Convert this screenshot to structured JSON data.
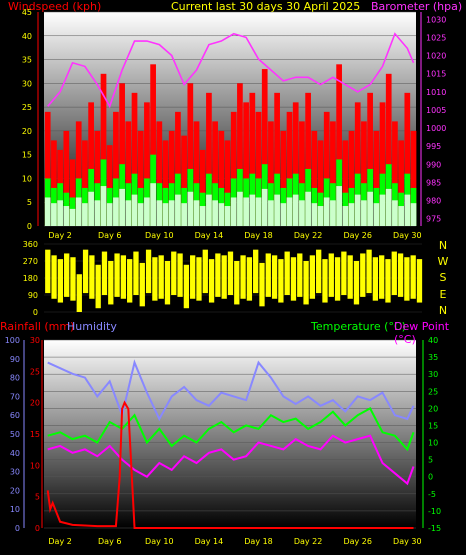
{
  "header": {
    "windspeed_label": "Windspeed (kph)",
    "title": "Current last 30 days 30 April 2025",
    "barometer_label": "Barometer (hpa)"
  },
  "bottom_header": {
    "rainfall_label": "Rainfall (mm)",
    "humidity_label": "Humidity",
    "temperature_label": "Temperature (°C)",
    "dewpoint_label": "Dew Point (°C)"
  },
  "compass_letters": [
    "N",
    "W",
    "S",
    "E",
    "N"
  ],
  "colors": {
    "gust": "#ff0000",
    "avg_wind": "#00ff00",
    "wind_fill": "#ccffcc",
    "barometer": "#ff33ff",
    "direction": "#ffff00",
    "rainfall": "#ff0000",
    "humidity": "#8888ff",
    "temperature": "#00ff00",
    "dewpoint": "#ff00ff",
    "title": "#ffff00",
    "tick_text": "#ffff00"
  },
  "chart_data": [
    {
      "type": "area",
      "name": "wind_barometer",
      "x_ticks": [
        "Day 2",
        "Day 6",
        "Day 10",
        "Day 14",
        "Day 18",
        "Day 22",
        "Day 26",
        "Day 30"
      ],
      "x_range": [
        0.7,
        30.7
      ],
      "y_left_label": "Windspeed (kph)",
      "y_left_ticks": [
        0,
        5,
        10,
        15,
        20,
        25,
        30,
        35,
        40,
        45
      ],
      "y_left_range": [
        0,
        45
      ],
      "y_right_label": "Barometer (hpa)",
      "y_right_ticks": [
        975,
        980,
        985,
        990,
        995,
        1000,
        1005,
        1010,
        1015,
        1020,
        1025,
        1030
      ],
      "y_right_range": [
        973,
        1032
      ],
      "series": [
        {
          "name": "Gust",
          "axis": "left",
          "style": "bars",
          "x": [
            1,
            1.5,
            2,
            2.5,
            3,
            3.5,
            4,
            4.5,
            5,
            5.5,
            6,
            6.5,
            7,
            7.5,
            8,
            8.5,
            9,
            9.5,
            10,
            10.5,
            11,
            11.5,
            12,
            12.5,
            13,
            13.5,
            14,
            14.5,
            15,
            15.5,
            16,
            16.5,
            17,
            17.5,
            18,
            18.5,
            19,
            19.5,
            20,
            20.5,
            21,
            21.5,
            22,
            22.5,
            23,
            23.5,
            24,
            24.5,
            25,
            25.5,
            26,
            26.5,
            27,
            27.5,
            28,
            28.5,
            29,
            29.5,
            30,
            30.5
          ],
          "values": [
            24,
            18,
            16,
            20,
            14,
            22,
            18,
            26,
            20,
            32,
            17,
            24,
            30,
            22,
            28,
            20,
            26,
            34,
            22,
            18,
            20,
            24,
            19,
            30,
            22,
            16,
            28,
            22,
            20,
            18,
            24,
            30,
            26,
            28,
            24,
            33,
            22,
            28,
            20,
            24,
            26,
            22,
            28,
            20,
            18,
            24,
            22,
            34,
            18,
            20,
            26,
            22,
            28,
            20,
            26,
            32,
            22,
            18,
            28,
            20
          ]
        },
        {
          "name": "Average",
          "axis": "left",
          "style": "bars",
          "x": [
            1,
            1.5,
            2,
            2.5,
            3,
            3.5,
            4,
            4.5,
            5,
            5.5,
            6,
            6.5,
            7,
            7.5,
            8,
            8.5,
            9,
            9.5,
            10,
            10.5,
            11,
            11.5,
            12,
            12.5,
            13,
            13.5,
            14,
            14.5,
            15,
            15.5,
            16,
            16.5,
            17,
            17.5,
            18,
            18.5,
            19,
            19.5,
            20,
            20.5,
            21,
            21.5,
            22,
            22.5,
            23,
            23.5,
            24,
            24.5,
            25,
            25.5,
            26,
            26.5,
            27,
            27.5,
            28,
            28.5,
            29,
            29.5,
            30,
            30.5
          ],
          "values": [
            10,
            8,
            9,
            7,
            6,
            10,
            8,
            12,
            9,
            14,
            8,
            10,
            13,
            9,
            11,
            8,
            10,
            15,
            9,
            8,
            9,
            11,
            8,
            12,
            9,
            7,
            11,
            9,
            8,
            7,
            10,
            12,
            10,
            11,
            10,
            13,
            9,
            11,
            8,
            10,
            11,
            9,
            12,
            8,
            7,
            10,
            9,
            14,
            7,
            8,
            11,
            9,
            12,
            8,
            11,
            13,
            9,
            7,
            11,
            8
          ]
        },
        {
          "name": "Barometer",
          "axis": "right",
          "style": "line",
          "x": [
            1,
            2,
            3,
            4,
            5,
            6,
            7,
            8,
            9,
            10,
            11,
            12,
            13,
            14,
            15,
            16,
            17,
            18,
            19,
            20,
            21,
            22,
            23,
            24,
            25,
            26,
            27,
            28,
            29,
            30,
            30.5
          ],
          "values": [
            1006,
            1010,
            1018,
            1017,
            1012,
            1006,
            1016,
            1024,
            1024,
            1023,
            1020,
            1012,
            1016,
            1023,
            1024,
            1026,
            1025,
            1019,
            1016,
            1013,
            1014,
            1014,
            1012,
            1014,
            1012,
            1010,
            1012,
            1017,
            1026,
            1022,
            1018
          ]
        }
      ]
    },
    {
      "type": "scatter",
      "name": "wind_direction",
      "x_range": [
        0.7,
        30.7
      ],
      "y_ticks": [
        0,
        90,
        180,
        270,
        360
      ],
      "y_range": [
        0,
        360
      ],
      "series": [
        {
          "name": "Direction",
          "x": [
            1,
            1.5,
            2,
            2.5,
            3,
            3.5,
            4,
            4.5,
            5,
            5.5,
            6,
            6.5,
            7,
            7.5,
            8,
            8.5,
            9,
            9.5,
            10,
            10.5,
            11,
            11.5,
            12,
            12.5,
            13,
            13.5,
            14,
            14.5,
            15,
            15.5,
            16,
            16.5,
            17,
            17.5,
            18,
            18.5,
            19,
            19.5,
            20,
            20.5,
            21,
            21.5,
            22,
            22.5,
            23,
            23.5,
            24,
            24.5,
            25,
            25.5,
            26,
            26.5,
            27,
            27.5,
            28,
            28.5,
            29,
            29.5,
            30,
            30.5
          ],
          "values": [
            330,
            300,
            280,
            310,
            290,
            200,
            330,
            300,
            250,
            320,
            270,
            310,
            300,
            280,
            320,
            260,
            330,
            290,
            300,
            270,
            320,
            310,
            250,
            300,
            290,
            330,
            280,
            310,
            300,
            320,
            270,
            300,
            290,
            330,
            260,
            310,
            300,
            280,
            320,
            290,
            310,
            270,
            300,
            330,
            280,
            310,
            290,
            320,
            300,
            270,
            310,
            330,
            290,
            300,
            280,
            320,
            310,
            290,
            300,
            280
          ]
        }
      ]
    },
    {
      "type": "line",
      "name": "rain_humidity_temperature",
      "x_ticks": [
        "Day 2",
        "Day 6",
        "Day 10",
        "Day 14",
        "Day 18",
        "Day 22",
        "Day 26",
        "Day 30"
      ],
      "x_range": [
        0.7,
        30.7
      ],
      "y_humidity_ticks": [
        0,
        10,
        20,
        30,
        40,
        50,
        60,
        70,
        80,
        90,
        100
      ],
      "y_humidity_range": [
        0,
        100
      ],
      "y_rain_ticks": [
        0,
        5,
        10,
        15,
        20,
        25,
        30
      ],
      "y_rain_range": [
        0,
        30
      ],
      "y_temp_ticks": [
        -15,
        -10,
        -5,
        0,
        5,
        10,
        15,
        20,
        25,
        30,
        35,
        40
      ],
      "y_temp_range": [
        -15,
        40
      ],
      "series": [
        {
          "name": "Humidity",
          "axis": "humidity",
          "x": [
            1,
            2,
            3,
            4,
            5,
            6,
            7,
            8,
            9,
            10,
            11,
            12,
            13,
            14,
            15,
            16,
            17,
            18,
            19,
            20,
            21,
            22,
            23,
            24,
            25,
            26,
            27,
            28,
            29,
            30,
            30.5
          ],
          "values": [
            88,
            85,
            82,
            80,
            70,
            78,
            60,
            88,
            72,
            58,
            70,
            75,
            68,
            65,
            72,
            70,
            68,
            88,
            80,
            70,
            66,
            70,
            65,
            68,
            62,
            70,
            68,
            72,
            60,
            58,
            65
          ]
        },
        {
          "name": "Rainfall",
          "axis": "rain",
          "x": [
            1,
            1.2,
            1.4,
            2,
            3,
            4,
            5,
            6,
            6.5,
            6.8,
            7,
            7.2,
            7.5,
            8,
            9,
            10,
            12,
            15,
            18,
            21,
            24,
            27,
            30,
            30.5
          ],
          "values": [
            6,
            3,
            4,
            1,
            0.5,
            0.4,
            0.3,
            0.3,
            0.3,
            8,
            19,
            20,
            19,
            0,
            0,
            0,
            0,
            0,
            0,
            0,
            0,
            0,
            0,
            0
          ]
        },
        {
          "name": "Temperature",
          "axis": "temp",
          "x": [
            1,
            2,
            3,
            4,
            5,
            6,
            7,
            8,
            9,
            10,
            11,
            12,
            13,
            14,
            15,
            16,
            17,
            18,
            19,
            20,
            21,
            22,
            23,
            24,
            25,
            26,
            27,
            28,
            29,
            30,
            30.5
          ],
          "values": [
            12,
            13,
            11,
            12,
            10,
            16,
            14,
            18,
            10,
            14,
            9,
            12,
            10,
            14,
            16,
            13,
            15,
            14,
            18,
            16,
            17,
            14,
            16,
            19,
            15,
            18,
            20,
            13,
            12,
            8,
            13
          ]
        },
        {
          "name": "Dew Point",
          "axis": "temp",
          "x": [
            1,
            2,
            3,
            4,
            5,
            6,
            7,
            8,
            9,
            10,
            11,
            12,
            13,
            14,
            15,
            16,
            17,
            18,
            19,
            20,
            21,
            22,
            23,
            24,
            25,
            26,
            27,
            28,
            29,
            30,
            30.5
          ],
          "values": [
            8,
            9,
            7,
            8,
            6,
            9,
            5,
            2,
            0,
            4,
            2,
            6,
            4,
            7,
            8,
            5,
            6,
            10,
            9,
            8,
            11,
            9,
            8,
            12,
            10,
            11,
            12,
            4,
            1,
            -2,
            3
          ]
        }
      ]
    }
  ]
}
